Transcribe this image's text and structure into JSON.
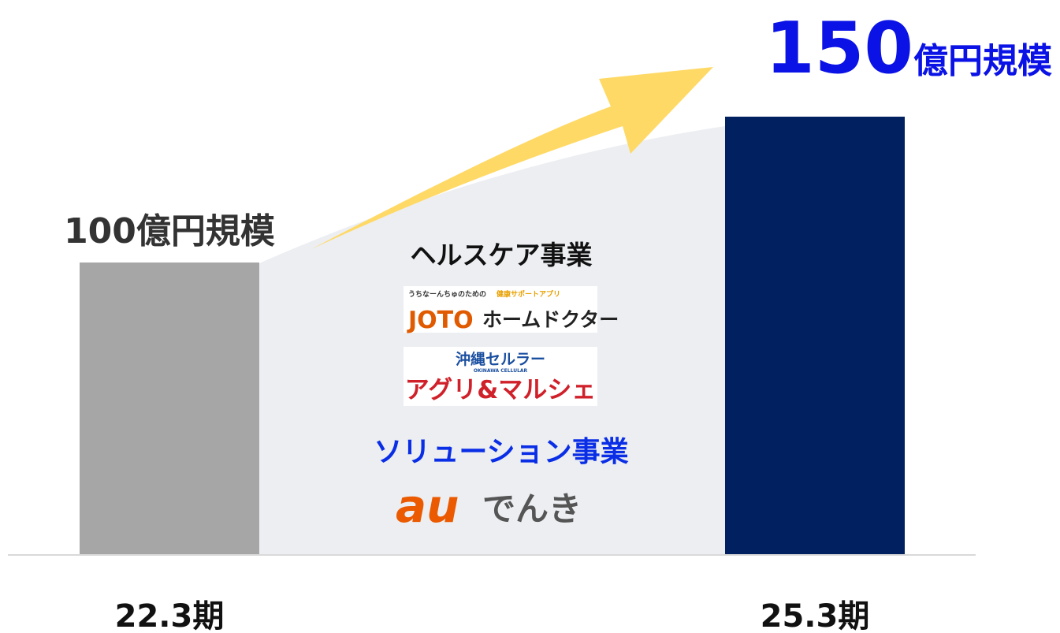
{
  "chart_data": {
    "type": "bar",
    "categories": [
      "22.3期",
      "25.3期"
    ],
    "values": [
      100,
      150
    ],
    "value_labels": [
      "100億円規模",
      "150億円規模"
    ],
    "colors": [
      "#a6a6a6",
      "#002060"
    ],
    "annotations": {
      "healthcare": "ヘルスケア事業",
      "joto_tagline": "うちなーんちゅのための",
      "joto_tagline_accent": "健康サポートアプリ",
      "joto_name": "JOTO",
      "joto_name_rest": "ホームドクター",
      "okinawa_cellular": "沖縄セルラー",
      "okinawa_cellular_en": "OKINAWA CELLULAR",
      "agri": "アグリ&マルシェ",
      "solution": "ソリューション事業",
      "au": "au",
      "denki": "でんき"
    }
  }
}
